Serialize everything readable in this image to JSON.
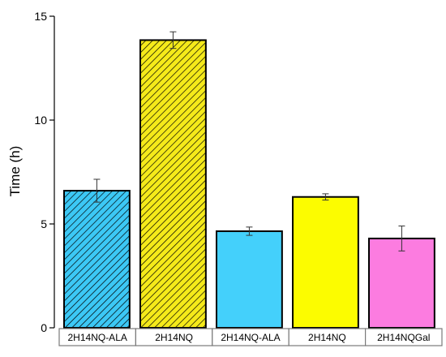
{
  "chart_data": {
    "type": "bar",
    "ylabel": "Time (h)",
    "xlabel": "",
    "ylim": [
      0,
      15
    ],
    "yticks": [
      0,
      5,
      10,
      15
    ],
    "categories": [
      "2H14NQ-ALA",
      "2H14NQ",
      "2H14NQ-ALA",
      "2H14NQ",
      "2H14NQGal"
    ],
    "values": [
      6.6,
      13.85,
      4.65,
      6.3,
      4.3
    ],
    "errors": [
      0.55,
      0.4,
      0.2,
      0.15,
      0.6
    ],
    "bar_colors": [
      "#3cc8f5",
      "#f5ea1a",
      "#44d0fb",
      "#fcfc00",
      "#fc7ce0"
    ],
    "hatched": [
      true,
      true,
      false,
      false,
      false
    ],
    "grid": false,
    "legend": "none"
  }
}
